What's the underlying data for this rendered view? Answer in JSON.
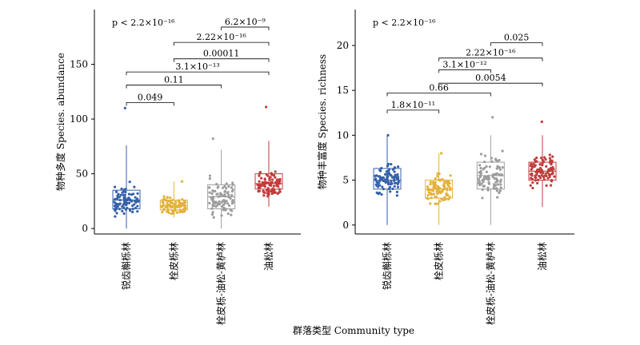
{
  "x_axis_label": "群落类型 Community type",
  "chart_data": [
    {
      "type": "box",
      "ylabel": "物种多度 Species. abundance",
      "ylim": [
        -5,
        200
      ],
      "yticks": [
        0,
        50,
        100,
        150
      ],
      "overall_p": "p < 2.2×10⁻¹⁶",
      "categories": [
        "锐齿槲栎林",
        "栓皮栎林",
        "栓皮栎-油松-黄栌林",
        "油松林"
      ],
      "colors": [
        "#3461a8",
        "#e3b23c",
        "#9d9d9d",
        "#c23b3b"
      ],
      "boxes": [
        {
          "q1": 18,
          "median": 26,
          "q3": 35,
          "lo": 0,
          "hi": 76,
          "max": 110
        },
        {
          "q1": 17,
          "median": 21,
          "q3": 26,
          "lo": 10,
          "hi": 43,
          "max": 43
        },
        {
          "q1": 18,
          "median": 29,
          "q3": 40,
          "lo": 0,
          "hi": 72,
          "max": 82
        },
        {
          "q1": 36,
          "median": 41,
          "q3": 50,
          "lo": 20,
          "hi": 80,
          "max": 111
        }
      ],
      "comparisons": [
        {
          "a": 0,
          "b": 1,
          "label": "0.049",
          "y": 115
        },
        {
          "a": 0,
          "b": 2,
          "label": "0.11",
          "y": 131
        },
        {
          "a": 0,
          "b": 3,
          "label": "3.1×10⁻¹³",
          "y": 143
        },
        {
          "a": 1,
          "b": 3,
          "label": "0.00011",
          "y": 155
        },
        {
          "a": 1,
          "b": 3,
          "label": "2.22×10⁻¹⁶",
          "y": 170
        },
        {
          "a": 2,
          "b": 3,
          "label": "6.2×10⁻⁹",
          "y": 184
        }
      ]
    },
    {
      "type": "box",
      "ylabel": "物种丰富度 Species. richness",
      "ylim": [
        -1,
        24
      ],
      "yticks": [
        0,
        5,
        10,
        15,
        20
      ],
      "overall_p": "p < 2.2×10⁻¹⁶",
      "categories": [
        "锐齿槲栎林",
        "栓皮栎林",
        "栓皮栎-油松-黄栌林",
        "油松林"
      ],
      "colors": [
        "#3461a8",
        "#e3b23c",
        "#9d9d9d",
        "#c23b3b"
      ],
      "boxes": [
        {
          "q1": 4,
          "median": 5,
          "q3": 6.3,
          "lo": 0,
          "hi": 10,
          "max": 10
        },
        {
          "q1": 3,
          "median": 4,
          "q3": 5,
          "lo": 0,
          "hi": 8,
          "max": 8
        },
        {
          "q1": 4,
          "median": 5.5,
          "q3": 7,
          "lo": 0,
          "hi": 10,
          "max": 12
        },
        {
          "q1": 5,
          "median": 6,
          "q3": 7,
          "lo": 2,
          "hi": 10,
          "max": 11.5
        }
      ],
      "comparisons": [
        {
          "a": 0,
          "b": 1,
          "label": "1.8×10⁻¹¹",
          "y": 12.8
        },
        {
          "a": 0,
          "b": 2,
          "label": "0.66",
          "y": 14.7
        },
        {
          "a": 1,
          "b": 3,
          "label": "0.0054",
          "y": 15.8
        },
        {
          "a": 1,
          "b": 2,
          "label": "3.1×10⁻¹²",
          "y": 17.3
        },
        {
          "a": 1,
          "b": 3,
          "label": "2.22×10⁻¹⁶",
          "y": 18.6
        },
        {
          "a": 2,
          "b": 3,
          "label": "0.025",
          "y": 20.3
        }
      ]
    }
  ]
}
